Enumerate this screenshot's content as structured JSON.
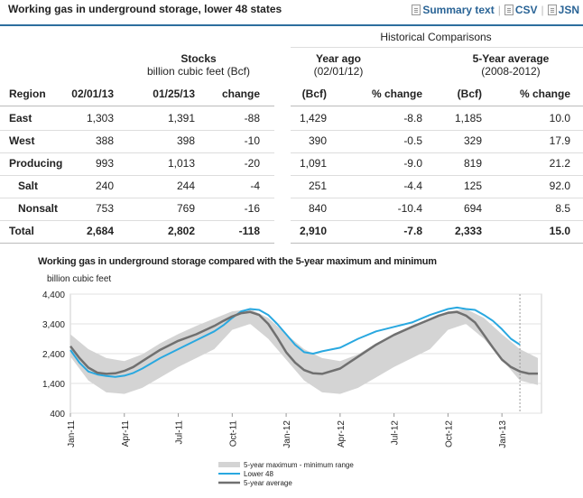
{
  "header": {
    "title": "Working gas in underground storage, lower 48 states",
    "links": [
      "Summary text",
      "CSV",
      "JSN"
    ]
  },
  "table": {
    "historical_label": "Historical Comparisons",
    "stocks_label": "Stocks",
    "stocks_unit": "billion cubic feet (Bcf)",
    "yearago_label": "Year ago",
    "yearago_date": "(02/01/12)",
    "fiveyr_label": "5-Year average",
    "fiveyr_range": "(2008-2012)",
    "columns": [
      "Region",
      "02/01/13",
      "01/25/13",
      "change",
      "(Bcf)",
      "% change",
      "(Bcf)",
      "% change"
    ],
    "rows": [
      {
        "region": "East",
        "c1": "1,303",
        "c2": "1,391",
        "chg": "-88",
        "ya": "1,429",
        "yapct": "-8.8",
        "fy": "1,185",
        "fypct": "10.0"
      },
      {
        "region": "West",
        "c1": "388",
        "c2": "398",
        "chg": "-10",
        "ya": "390",
        "yapct": "-0.5",
        "fy": "329",
        "fypct": "17.9"
      },
      {
        "region": "Producing",
        "c1": "993",
        "c2": "1,013",
        "chg": "-20",
        "ya": "1,091",
        "yapct": "-9.0",
        "fy": "819",
        "fypct": "21.2"
      },
      {
        "region": "Salt",
        "c1": "240",
        "c2": "244",
        "chg": "-4",
        "ya": "251",
        "yapct": "-4.4",
        "fy": "125",
        "fypct": "92.0"
      },
      {
        "region": "Nonsalt",
        "c1": "753",
        "c2": "769",
        "chg": "-16",
        "ya": "840",
        "yapct": "-10.4",
        "fy": "694",
        "fypct": "8.5"
      },
      {
        "region": "Total",
        "c1": "2,684",
        "c2": "2,802",
        "chg": "-118",
        "ya": "2,910",
        "yapct": "-7.8",
        "fy": "2,333",
        "fypct": "15.0"
      }
    ]
  },
  "colors": {
    "accent": "#2d6e9e",
    "lower48": "#29a8e0",
    "avg": "#707070",
    "band": "#d4d4d4"
  },
  "chart_data": {
    "type": "area",
    "title": "Working gas in underground storage compared with the 5-year maximum and minimum",
    "ylabel": "billion cubic feet",
    "ylim": [
      400,
      4400
    ],
    "yticks": [
      400,
      1400,
      2400,
      3400,
      4400
    ],
    "ytick_labels": [
      "400",
      "1,400",
      "2,400",
      "3,400",
      "4,400"
    ],
    "xlim": [
      0,
      26.2
    ],
    "xticks": [
      0,
      3,
      6,
      9,
      12,
      15,
      18,
      21,
      24
    ],
    "xtick_labels": [
      "Jan-11",
      "Apr-11",
      "Jul-11",
      "Oct-11",
      "Jan-12",
      "Apr-12",
      "Jul-12",
      "Oct-12",
      "Jan-13"
    ],
    "current_marker_x": 25.0,
    "band_x": [
      0,
      1,
      2,
      3,
      4,
      5,
      6,
      7,
      8,
      9,
      10,
      11,
      12,
      13,
      14,
      15,
      16,
      17,
      18,
      19,
      20,
      21,
      22,
      23,
      24,
      25,
      26
    ],
    "band_max": [
      3050,
      2550,
      2250,
      2150,
      2380,
      2750,
      3060,
      3330,
      3580,
      3820,
      3900,
      3600,
      3050,
      2550,
      2250,
      2150,
      2380,
      2750,
      3060,
      3330,
      3580,
      3820,
      3900,
      3600,
      3050,
      2550,
      2250
    ],
    "band_min": [
      2300,
      1500,
      1100,
      1050,
      1250,
      1600,
      1950,
      2250,
      2550,
      3200,
      3400,
      2900,
      2200,
      1500,
      1100,
      1050,
      1250,
      1600,
      1950,
      2250,
      2550,
      3200,
      3400,
      2900,
      2200,
      1500,
      1350
    ],
    "series": [
      {
        "name": "Lower 48",
        "x": [
          0,
          0.5,
          1,
          1.5,
          2,
          2.5,
          3,
          3.5,
          4,
          5,
          6,
          7,
          8,
          8.5,
          9,
          9.5,
          10,
          10.5,
          11,
          11.5,
          12,
          12.5,
          13,
          13.5,
          14,
          15,
          16,
          17,
          18,
          19,
          20,
          20.5,
          21,
          21.5,
          22,
          22.5,
          23,
          23.5,
          24,
          24.5,
          25
        ],
        "values": [
          2520,
          2100,
          1800,
          1700,
          1650,
          1620,
          1660,
          1750,
          1900,
          2250,
          2550,
          2850,
          3150,
          3350,
          3600,
          3820,
          3900,
          3870,
          3700,
          3400,
          3050,
          2700,
          2450,
          2400,
          2480,
          2600,
          2900,
          3150,
          3300,
          3450,
          3700,
          3800,
          3900,
          3950,
          3900,
          3870,
          3700,
          3500,
          3220,
          2900,
          2700
        ]
      },
      {
        "name": "5-year average",
        "x": [
          0,
          0.5,
          1,
          1.5,
          2,
          2.5,
          3,
          3.5,
          4,
          5,
          6,
          7,
          8,
          8.5,
          9,
          9.5,
          10,
          10.5,
          11,
          11.5,
          12,
          12.5,
          13,
          13.5,
          14,
          15,
          16,
          17,
          18,
          19,
          20,
          20.5,
          21,
          21.5,
          22,
          22.5,
          23,
          23.5,
          24,
          24.5,
          25,
          25.5,
          26
        ],
        "values": [
          2650,
          2250,
          1930,
          1760,
          1720,
          1740,
          1820,
          1950,
          2150,
          2530,
          2830,
          3050,
          3330,
          3500,
          3650,
          3760,
          3800,
          3700,
          3400,
          2950,
          2450,
          2100,
          1850,
          1740,
          1720,
          1900,
          2300,
          2700,
          3030,
          3300,
          3550,
          3680,
          3770,
          3800,
          3680,
          3450,
          3030,
          2600,
          2200,
          1950,
          1800,
          1730,
          1730
        ]
      }
    ],
    "legend": [
      "5-year maximum - minimum range",
      "Lower 48",
      "5-year average"
    ]
  }
}
